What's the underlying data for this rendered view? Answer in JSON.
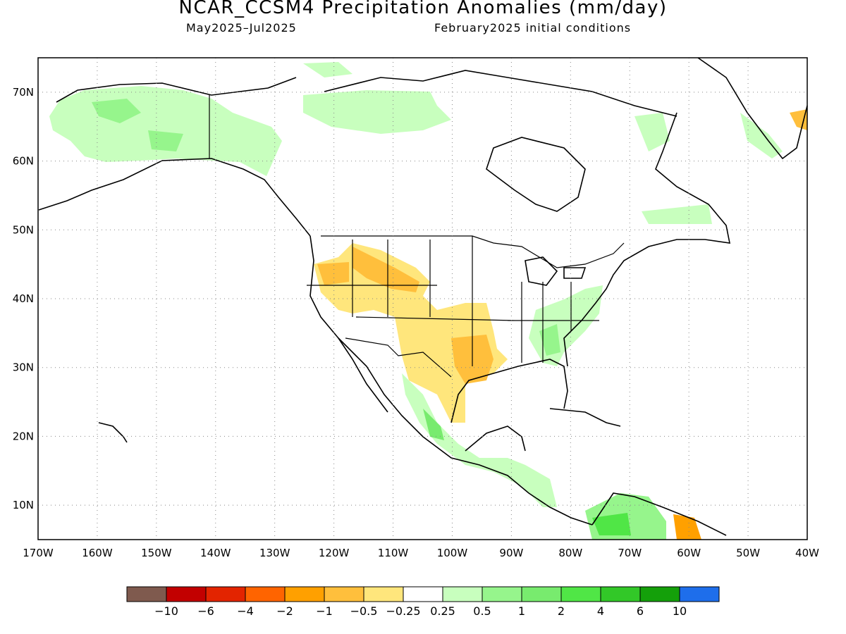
{
  "header": {
    "title": "NCAR_CCSM4 Precipitation Anomalies (mm/day)",
    "period": "May2025–Jul2025",
    "init": "February2025 initial conditions"
  },
  "map": {
    "lon_range": [
      -170,
      -40
    ],
    "lat_range": [
      5,
      75
    ],
    "lon_ticks": [
      "170W",
      "160W",
      "150W",
      "140W",
      "130W",
      "120W",
      "110W",
      "100W",
      "90W",
      "80W",
      "70W",
      "60W",
      "50W",
      "40W"
    ],
    "lat_ticks": [
      "70N",
      "60N",
      "50N",
      "40N",
      "30N",
      "20N",
      "10N"
    ],
    "grid": true
  },
  "colorbar": {
    "colors": [
      "#7f5a4e",
      "#c20000",
      "#e32400",
      "#ff6400",
      "#ffa000",
      "#ffbf3c",
      "#ffe67c",
      "#ffffff",
      "#c8ffbe",
      "#96f58c",
      "#78eb6e",
      "#50e646",
      "#32c828",
      "#14a00a",
      "#1e6eeb"
    ],
    "labels": [
      "−10",
      "−6",
      "−4",
      "−2",
      "−1",
      "−0.5",
      "−0.25",
      "0.25",
      "0.5",
      "1",
      "2",
      "4",
      "6",
      "10"
    ]
  }
}
